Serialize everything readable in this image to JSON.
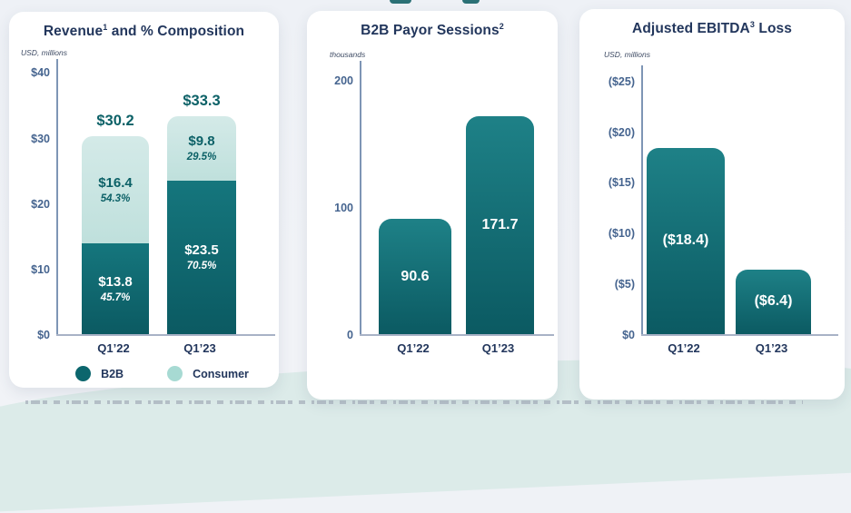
{
  "colors": {
    "b2b_dark_teal": "#0c666d",
    "consumer_light_teal": "#a7dad3",
    "bar_gradient_top": "#1e8187",
    "bar_gradient_bottom": "#0b5a62",
    "title_navy": "#22365c",
    "axis_slate": "#45648f",
    "value_teal": "#0c6167",
    "background_wave_teal": "#dcebe9"
  },
  "chart_data": [
    {
      "type": "bar",
      "stacked": true,
      "title": {
        "pre": "Revenue",
        "sup": "1",
        "post": " and % Composition"
      },
      "unit_label": "USD, millions",
      "categories": [
        "Q1’22",
        "Q1’23"
      ],
      "series": [
        {
          "name": "B2B",
          "color": "#0c666d",
          "values": [
            13.8,
            23.5
          ],
          "value_labels": [
            "$13.8",
            "$23.5"
          ],
          "pct_labels": [
            "45.7%",
            "70.5%"
          ]
        },
        {
          "name": "Consumer",
          "color": "#a7dad3",
          "values": [
            16.4,
            9.8
          ],
          "value_labels": [
            "$16.4",
            "$9.8"
          ],
          "pct_labels": [
            "54.3%",
            "29.5%"
          ]
        }
      ],
      "totals": [
        30.2,
        33.3
      ],
      "total_labels": [
        "$30.2",
        "$33.3"
      ],
      "yticks": [
        {
          "label": "$40",
          "value": 40
        },
        {
          "label": "$30",
          "value": 30
        },
        {
          "label": "$20",
          "value": 20
        },
        {
          "label": "$10",
          "value": 10
        },
        {
          "label": "$0",
          "value": 0
        }
      ],
      "ylim": [
        0,
        42
      ],
      "grid": false,
      "legend_position": "bottom",
      "legend": [
        {
          "label": "B2B",
          "color": "#0c666d"
        },
        {
          "label": "Consumer",
          "color": "#a7dad3"
        }
      ]
    },
    {
      "type": "bar",
      "stacked": false,
      "title": {
        "pre": "B2B Payor Sessions",
        "sup": "2",
        "post": ""
      },
      "unit_label": "thousands",
      "categories": [
        "Q1’22",
        "Q1’23"
      ],
      "values": [
        90.6,
        171.7
      ],
      "value_labels": [
        "90.6",
        "171.7"
      ],
      "yticks": [
        {
          "label": "200",
          "value": 200
        },
        {
          "label": "100",
          "value": 100
        },
        {
          "label": "0",
          "value": 0
        }
      ],
      "ylim": [
        0,
        215
      ],
      "grid": false
    },
    {
      "type": "bar",
      "stacked": false,
      "title": {
        "pre": "Adjusted EBITDA",
        "sup": "3",
        "post": " Loss"
      },
      "unit_label": "USD, millions",
      "categories": [
        "Q1’22",
        "Q1’23"
      ],
      "values": [
        18.4,
        6.4
      ],
      "value_labels": [
        "($18.4)",
        "($6.4)"
      ],
      "yticks": [
        {
          "label": "($25)",
          "value": 25
        },
        {
          "label": "($20)",
          "value": 20
        },
        {
          "label": "($15)",
          "value": 15
        },
        {
          "label": "($10)",
          "value": 10
        },
        {
          "label": "($5)",
          "value": 5
        },
        {
          "label": "$0",
          "value": 0
        }
      ],
      "ylim": [
        0,
        26.5
      ],
      "grid": false
    }
  ]
}
